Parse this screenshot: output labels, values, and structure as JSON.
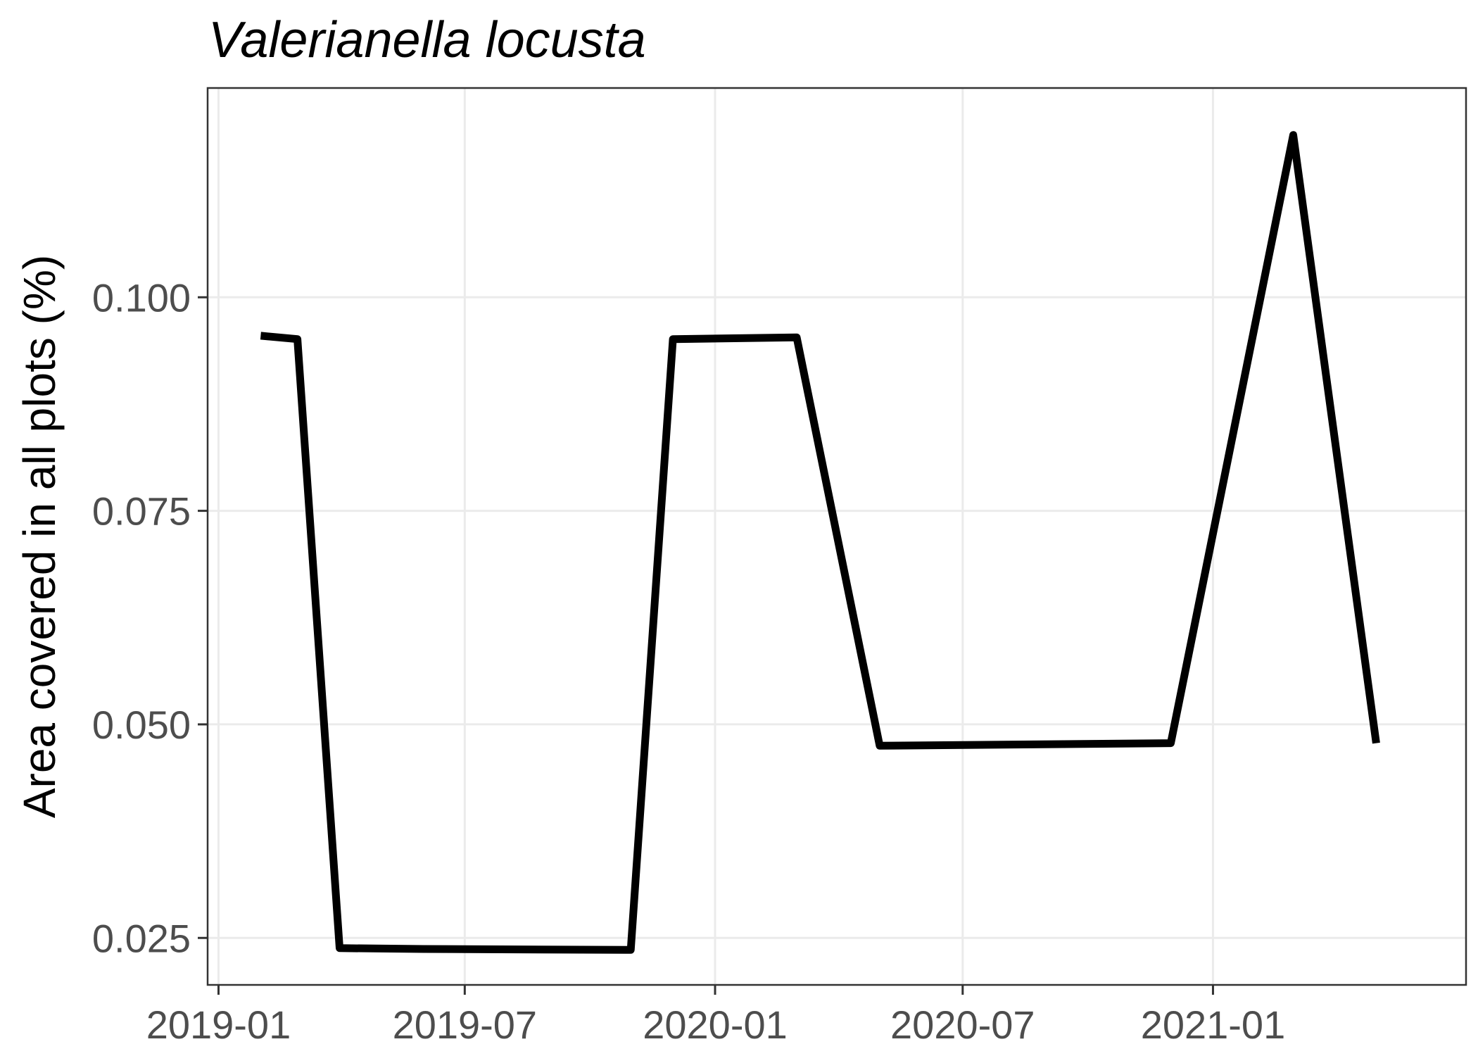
{
  "chart_data": {
    "type": "line",
    "title": "Valerianella locusta",
    "xlabel": "",
    "ylabel": "Area covered in all plots (%)",
    "x_ticks": [
      "2019-01",
      "2019-07",
      "2020-01",
      "2020-07",
      "2021-01"
    ],
    "y_ticks": [
      "0.025",
      "0.050",
      "0.075",
      "0.100"
    ],
    "xlim": [
      "2018-12-24",
      "2021-07-06"
    ],
    "ylim": [
      0.0195,
      0.1245
    ],
    "grid": true,
    "series": [
      {
        "color": "#000000",
        "points": [
          {
            "x": "2019-02-01",
            "y": 0.0955
          },
          {
            "x": "2019-02-28",
            "y": 0.0951
          },
          {
            "x": "2019-03-31",
            "y": 0.0238
          },
          {
            "x": "2019-06-01",
            "y": 0.0237
          },
          {
            "x": "2019-10-31",
            "y": 0.0236
          },
          {
            "x": "2019-12-01",
            "y": 0.0951
          },
          {
            "x": "2020-03-01",
            "y": 0.0953
          },
          {
            "x": "2020-05-01",
            "y": 0.0475
          },
          {
            "x": "2020-12-01",
            "y": 0.0478
          },
          {
            "x": "2021-03-01",
            "y": 0.119
          },
          {
            "x": "2021-05-01",
            "y": 0.0478
          }
        ]
      }
    ]
  }
}
